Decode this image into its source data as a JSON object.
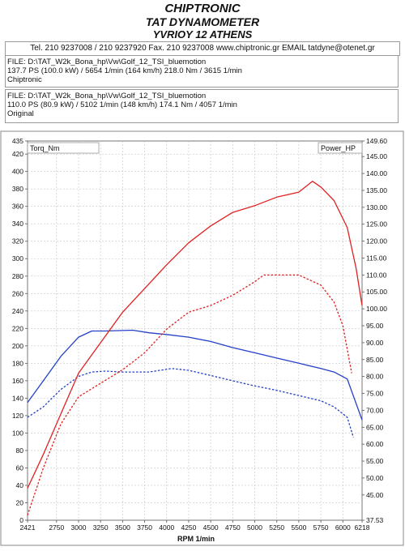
{
  "header": {
    "title": "CHIPTRONIC",
    "subtitle": "TAT DYNAMOMETER",
    "address": "YVRIOY 12 ATHENS",
    "contact": "Tel. 210 9237008 / 210 9237920   Fax. 210 9237008 www.chiptronic.gr EMAIL tatdyne@otenet.gr"
  },
  "files": [
    {
      "path": "FILE: D:\\TAT_W2k_Bona_hp\\Vw\\Golf_12_TSI_bluemotion",
      "stats": "137.7 PS  (100.0 kW) / 5654 1/min (164 km/h)    218.0 Nm / 3615 1/min",
      "label": "Chiptronic"
    },
    {
      "path": "FILE: D:\\TAT_W2k_Bona_hp\\Vw\\Golf_12_TSI_bluemotion",
      "stats": "110.0 PS  (80.9 kW) / 5102 1/min (148 km/h)    174.1 Nm / 4057 1/min",
      "label": "Original"
    }
  ],
  "chart_data": {
    "type": "line",
    "xlabel": "RPM  1/min",
    "left_axis_label": "Torq_Nm",
    "right_axis_label": "Power_HP",
    "xlim": [
      2421,
      6218
    ],
    "ylim_left": [
      0,
      435
    ],
    "ylim_right": [
      37.53,
      149.6
    ],
    "x_ticks": [
      "2421",
      "2750",
      "3000",
      "3250",
      "3500",
      "3750",
      "4000",
      "4250",
      "4500",
      "4750",
      "5000",
      "5250",
      "5500",
      "5750",
      "6000",
      "6218"
    ],
    "y_ticks_left": [
      "435",
      "420",
      "400",
      "380",
      "360",
      "340",
      "320",
      "300",
      "280",
      "260",
      "240",
      "220",
      "200",
      "180",
      "160",
      "140",
      "120",
      "100",
      "80",
      "60",
      "40",
      "20",
      "0"
    ],
    "y_ticks_right": [
      "149.60",
      "145.00",
      "140.00",
      "135.00",
      "130.00",
      "125.00",
      "120.00",
      "115.00",
      "110.00",
      "105.00",
      "100.00",
      "95.00",
      "90.00",
      "85.00",
      "80.00",
      "75.00",
      "70.00",
      "65.00",
      "60.00",
      "55.00",
      "50.00",
      "45.00",
      "37.53"
    ],
    "grid": true,
    "series": [
      {
        "name": "Torq_Nm",
        "axis": "left",
        "style": "solid",
        "color": "#2340c8",
        "x": [
          2421,
          2600,
          2800,
          3000,
          3150,
          3300,
          3615,
          3800,
          4000,
          4250,
          4500,
          4750,
          5000,
          5250,
          5500,
          5750,
          5900,
          6050,
          6218
        ],
        "y": [
          135,
          160,
          188,
          210,
          217,
          217,
          218,
          215,
          213,
          210,
          205,
          198,
          192,
          186,
          180,
          174,
          170,
          162,
          115
        ]
      },
      {
        "name": "Torq_Nm",
        "axis": "left",
        "style": "dashed",
        "color": "#2340c8",
        "x": [
          2421,
          2600,
          2800,
          3000,
          3150,
          3300,
          3500,
          3800,
          4057,
          4250,
          4500,
          4750,
          5000,
          5250,
          5500,
          5750,
          5900,
          6050,
          6120
        ],
        "y": [
          118,
          130,
          150,
          165,
          170,
          171,
          170,
          170,
          174,
          172,
          166,
          160,
          154,
          149,
          143,
          137,
          130,
          118,
          95
        ]
      },
      {
        "name": "Power_HP",
        "axis": "right",
        "style": "solid",
        "color": "#e02020",
        "x": [
          2421,
          2600,
          2800,
          3000,
          3250,
          3500,
          3750,
          4000,
          4250,
          4500,
          4750,
          5000,
          5250,
          5500,
          5654,
          5750,
          5900,
          6050,
          6150,
          6218
        ],
        "y": [
          47,
          57,
          69,
          81,
          90,
          99,
          106,
          113,
          119.5,
          124.5,
          128.5,
          130.5,
          133,
          134.5,
          137.7,
          136,
          132,
          124,
          112,
          101
        ]
      },
      {
        "name": "Power_HP",
        "axis": "right",
        "style": "dashed",
        "color": "#e02020",
        "x": [
          2421,
          2600,
          2800,
          3000,
          3250,
          3500,
          3750,
          4000,
          4250,
          4500,
          4750,
          5000,
          5102,
          5250,
          5500,
          5750,
          5900,
          6000,
          6100
        ],
        "y": [
          39,
          53,
          66,
          74,
          78,
          82,
          87,
          94,
          99,
          101,
          104,
          108,
          110,
          110,
          110,
          107,
          102,
          95,
          81
        ]
      }
    ]
  }
}
